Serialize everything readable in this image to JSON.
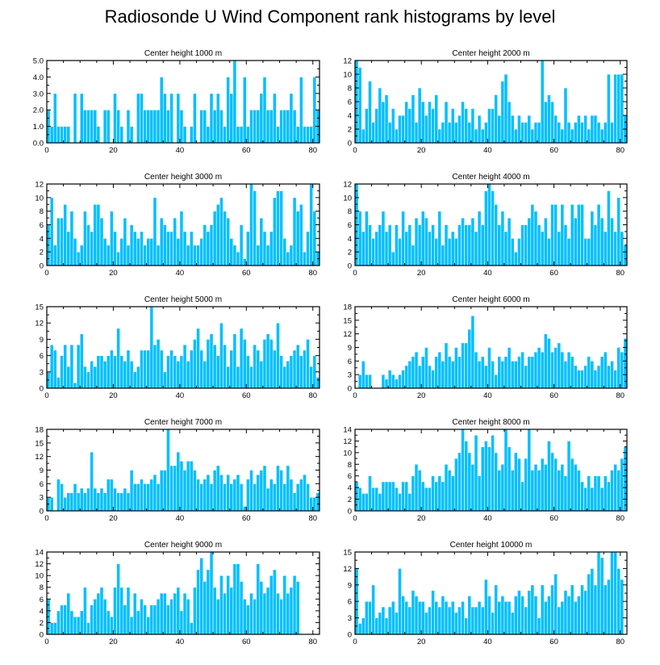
{
  "title": "Radiosonde U Wind Component rank histograms by level",
  "colors": {
    "bar": "#00BFFF",
    "bar_edge": "#ffffff",
    "axis": "#000000"
  },
  "chart_data": [
    {
      "type": "bar",
      "title": "Center height 1000 m",
      "xlim": [
        0,
        82
      ],
      "ylim": [
        0,
        5
      ],
      "xticks": [
        0,
        20,
        40,
        60,
        80
      ],
      "yticks": [
        0,
        1,
        2,
        3,
        4,
        5
      ],
      "ytick_labels": [
        "0.0",
        "1.0",
        "2.0",
        "3.0",
        "4.0",
        "5.0"
      ],
      "x_start": 0,
      "values": [
        2,
        1,
        3,
        1,
        1,
        1,
        1,
        0,
        3,
        0,
        3,
        2,
        2,
        2,
        2,
        1,
        0,
        2,
        2,
        0,
        3,
        2,
        1,
        0,
        2,
        1,
        0,
        3,
        3,
        2,
        2,
        2,
        2,
        2,
        4,
        3,
        2,
        3,
        0,
        3,
        2,
        1,
        0,
        1,
        3,
        0,
        2,
        2,
        1,
        3,
        2,
        3,
        2,
        1,
        4,
        3,
        5,
        1,
        1,
        4,
        1,
        2,
        2,
        2,
        3,
        4,
        2,
        2,
        3,
        1,
        2,
        2,
        2,
        3,
        2,
        1,
        4,
        1,
        1,
        1,
        4,
        2
      ]
    },
    {
      "type": "bar",
      "title": "Center height 2000 m",
      "xlim": [
        0,
        82
      ],
      "ylim": [
        0,
        12
      ],
      "xticks": [
        0,
        20,
        40,
        60,
        80
      ],
      "yticks": [
        0,
        2,
        4,
        6,
        8,
        10,
        12
      ],
      "ytick_labels": [
        "0",
        "2",
        "4",
        "6",
        "8",
        "10",
        "12"
      ],
      "x_start": 0,
      "values": [
        12,
        11,
        2,
        5,
        9,
        3,
        5,
        8,
        6,
        7,
        3,
        5,
        2,
        4,
        4,
        6,
        5,
        7,
        3,
        8,
        6,
        4,
        6,
        5,
        7,
        2,
        3,
        6,
        3,
        5,
        3,
        4,
        6,
        5,
        3,
        5,
        2,
        4,
        2,
        3,
        5,
        5,
        7,
        4,
        9,
        10,
        6,
        4,
        2,
        4,
        3,
        3,
        4,
        2,
        3,
        3,
        12,
        6,
        7,
        6,
        4,
        3,
        2,
        8,
        3,
        2,
        3,
        4,
        3,
        4,
        2,
        4,
        4,
        3,
        2,
        3,
        10,
        3,
        10,
        10,
        10,
        4
      ]
    },
    {
      "type": "bar",
      "title": "Center height 3000 m",
      "xlim": [
        0,
        82
      ],
      "ylim": [
        0,
        12
      ],
      "xticks": [
        0,
        20,
        40,
        60,
        80
      ],
      "yticks": [
        0,
        2,
        4,
        6,
        8,
        10,
        12
      ],
      "ytick_labels": [
        "0",
        "2",
        "4",
        "6",
        "8",
        "10",
        "12"
      ],
      "x_start": 0,
      "values": [
        6,
        10,
        3,
        7,
        7,
        9,
        5,
        8,
        4,
        2,
        3,
        8,
        6,
        5,
        9,
        9,
        7,
        4,
        3,
        8,
        5,
        2,
        4,
        7,
        3,
        6,
        5,
        4,
        5,
        3,
        4,
        4,
        10,
        3,
        7,
        6,
        5,
        5,
        7,
        4,
        8,
        5,
        3,
        5,
        3,
        3,
        4,
        6,
        5,
        6,
        8,
        9,
        10,
        8,
        7,
        4,
        3,
        2,
        6,
        1,
        5,
        12,
        11,
        3,
        7,
        5,
        3,
        5,
        10,
        11,
        11,
        4,
        2,
        3,
        10,
        8,
        9,
        2,
        5,
        12,
        8,
        2
      ]
    },
    {
      "type": "bar",
      "title": "Center height 4000 m",
      "xlim": [
        0,
        82
      ],
      "ylim": [
        0,
        12
      ],
      "xticks": [
        0,
        20,
        40,
        60,
        80
      ],
      "yticks": [
        0,
        2,
        4,
        6,
        8,
        10,
        12
      ],
      "ytick_labels": [
        "0",
        "2",
        "4",
        "6",
        "8",
        "10",
        "12"
      ],
      "x_start": 0,
      "values": [
        12,
        8,
        5,
        8,
        6,
        4,
        5,
        6,
        8,
        5,
        6,
        2,
        6,
        4,
        8,
        5,
        6,
        3,
        7,
        6,
        8,
        7,
        5,
        6,
        4,
        8,
        3,
        6,
        4,
        5,
        4,
        6,
        7,
        6,
        6,
        7,
        5,
        8,
        6,
        11,
        12,
        11,
        9,
        6,
        8,
        5,
        7,
        4,
        2,
        4,
        6,
        6,
        7,
        9,
        8,
        6,
        5,
        7,
        4,
        9,
        9,
        5,
        9,
        6,
        4,
        9,
        7,
        9,
        9,
        4,
        4,
        8,
        6,
        9,
        7,
        5,
        11,
        7,
        5,
        10,
        5,
        3
      ]
    },
    {
      "type": "bar",
      "title": "Center height 5000 m",
      "xlim": [
        0,
        82
      ],
      "ylim": [
        0,
        15
      ],
      "xticks": [
        0,
        20,
        40,
        60,
        80
      ],
      "yticks": [
        0,
        3,
        6,
        9,
        12,
        15
      ],
      "ytick_labels": [
        "0",
        "3",
        "6",
        "9",
        "12",
        "15"
      ],
      "x_start": 0,
      "values": [
        3,
        8,
        7,
        2,
        6,
        8,
        4,
        8,
        1,
        8,
        10,
        4,
        3,
        5,
        4,
        6,
        6,
        5,
        6,
        7,
        6,
        11,
        6,
        5,
        7,
        5,
        3,
        4,
        7,
        7,
        7,
        15,
        8,
        9,
        7,
        3,
        6,
        7,
        6,
        5,
        6,
        8,
        5,
        7,
        9,
        11,
        7,
        5,
        9,
        10,
        8,
        6,
        12,
        8,
        4,
        7,
        10,
        4,
        11,
        9,
        6,
        4,
        8,
        7,
        5,
        9,
        10,
        9,
        7,
        12,
        6,
        4,
        5,
        6,
        7,
        8,
        6,
        7,
        9,
        4,
        6,
        2
      ]
    },
    {
      "type": "bar",
      "title": "Center height 6000 m",
      "xlim": [
        0,
        82
      ],
      "ylim": [
        0,
        18
      ],
      "xticks": [
        0,
        20,
        40,
        60,
        80
      ],
      "yticks": [
        0,
        3,
        6,
        9,
        12,
        15,
        18
      ],
      "ytick_labels": [
        "0",
        "3",
        "6",
        "9",
        "12",
        "15",
        "18"
      ],
      "x_start": 0,
      "values": [
        0,
        3,
        6,
        3,
        3,
        0,
        0,
        0,
        3,
        2,
        4,
        3,
        2,
        3,
        4,
        5,
        6,
        7,
        8,
        5,
        7,
        9,
        5,
        4,
        7,
        8,
        6,
        10,
        7,
        6,
        9,
        7,
        10,
        10,
        13,
        16,
        8,
        6,
        7,
        5,
        9,
        6,
        3,
        7,
        6,
        7,
        9,
        6,
        6,
        7,
        8,
        5,
        7,
        7,
        8,
        9,
        8,
        12,
        11,
        8,
        9,
        10,
        8,
        6,
        8,
        7,
        5,
        4,
        4,
        5,
        7,
        6,
        4,
        5,
        7,
        8,
        5,
        6,
        4,
        9,
        8,
        11
      ]
    },
    {
      "type": "bar",
      "title": "Center height 7000 m",
      "xlim": [
        0,
        82
      ],
      "ylim": [
        0,
        18
      ],
      "xticks": [
        0,
        20,
        40,
        60,
        80
      ],
      "yticks": [
        0,
        3,
        6,
        9,
        12,
        15,
        18
      ],
      "ytick_labels": [
        "0",
        "3",
        "6",
        "9",
        "12",
        "15",
        "18"
      ],
      "x_start": 0,
      "values": [
        3,
        3,
        0,
        7,
        6,
        3,
        4,
        4,
        6,
        4,
        5,
        4,
        5,
        13,
        5,
        4,
        5,
        4,
        7,
        7,
        5,
        4,
        4,
        5,
        4,
        9,
        6,
        6,
        7,
        6,
        6,
        7,
        8,
        6,
        9,
        9,
        18,
        10,
        10,
        13,
        11,
        9,
        11,
        11,
        9,
        7,
        6,
        7,
        8,
        6,
        9,
        10,
        8,
        6,
        8,
        6,
        7,
        8,
        6,
        1,
        7,
        9,
        6,
        8,
        9,
        10,
        5,
        7,
        6,
        10,
        9,
        6,
        10,
        7,
        4,
        6,
        7,
        8,
        6,
        3,
        3,
        4
      ]
    },
    {
      "type": "bar",
      "title": "Center height 8000 m",
      "xlim": [
        0,
        82
      ],
      "ylim": [
        0,
        14
      ],
      "xticks": [
        0,
        20,
        40,
        60,
        80
      ],
      "yticks": [
        0,
        2,
        4,
        6,
        8,
        10,
        12,
        14
      ],
      "ytick_labels": [
        "0",
        "2",
        "4",
        "6",
        "8",
        "10",
        "12",
        "14"
      ],
      "x_start": 0,
      "values": [
        5,
        4,
        3,
        3,
        6,
        4,
        4,
        3,
        5,
        5,
        5,
        5,
        4,
        3,
        5,
        5,
        3,
        6,
        8,
        7,
        5,
        4,
        4,
        6,
        5,
        6,
        5,
        8,
        7,
        6,
        9,
        10,
        14,
        12,
        10,
        8,
        13,
        6,
        11,
        12,
        11,
        13,
        10,
        7,
        8,
        14,
        11,
        7,
        10,
        9,
        5,
        9,
        14,
        7,
        8,
        7,
        9,
        8,
        12,
        10,
        9,
        7,
        8,
        6,
        12,
        9,
        8,
        7,
        5,
        4,
        6,
        4,
        6,
        6,
        4,
        6,
        5,
        7,
        8,
        7,
        9,
        11
      ]
    },
    {
      "type": "bar",
      "title": "Center height 9000 m",
      "xlim": [
        0,
        82
      ],
      "ylim": [
        0,
        14
      ],
      "xticks": [
        0,
        20,
        40,
        60,
        80
      ],
      "yticks": [
        0,
        2,
        4,
        6,
        8,
        10,
        12,
        14
      ],
      "ytick_labels": [
        "0",
        "2",
        "4",
        "6",
        "8",
        "10",
        "12",
        "14"
      ],
      "x_start": 0,
      "values": [
        6,
        2,
        2,
        4,
        5,
        5,
        7,
        4,
        3,
        3,
        4,
        8,
        2,
        5,
        6,
        7,
        8,
        6,
        4,
        3,
        8,
        12,
        8,
        5,
        8,
        3,
        7,
        4,
        6,
        5,
        3,
        5,
        5,
        6,
        7,
        7,
        5,
        6,
        7,
        8,
        4,
        7,
        6,
        2,
        8,
        11,
        13,
        9,
        11,
        14,
        8,
        6,
        10,
        7,
        10,
        8,
        12,
        12,
        9,
        6,
        5,
        7,
        6,
        12,
        9,
        7,
        8,
        10,
        11,
        7,
        6,
        10,
        7,
        8,
        10,
        9
      ]
    },
    {
      "type": "bar",
      "title": "Center height 10000 m",
      "xlim": [
        0,
        82
      ],
      "ylim": [
        0,
        15
      ],
      "xticks": [
        0,
        20,
        40,
        60,
        80
      ],
      "yticks": [
        0,
        3,
        6,
        9,
        12,
        15
      ],
      "ytick_labels": [
        "0",
        "3",
        "6",
        "9",
        "12",
        "15"
      ],
      "x_start": 0,
      "values": [
        12,
        2,
        3,
        6,
        6,
        9,
        3,
        4,
        5,
        3,
        5,
        6,
        4,
        12,
        7,
        6,
        5,
        8,
        7,
        6,
        6,
        4,
        5,
        8,
        6,
        5,
        7,
        6,
        5,
        6,
        4,
        5,
        6,
        3,
        7,
        5,
        5,
        6,
        5,
        10,
        7,
        4,
        9,
        6,
        7,
        6,
        6,
        4,
        7,
        8,
        7,
        5,
        8,
        9,
        7,
        3,
        9,
        6,
        7,
        9,
        11,
        5,
        6,
        8,
        7,
        9,
        6,
        7,
        9,
        8,
        11,
        12,
        9,
        15,
        14,
        9,
        10,
        15,
        15,
        12,
        10
      ]
    }
  ]
}
